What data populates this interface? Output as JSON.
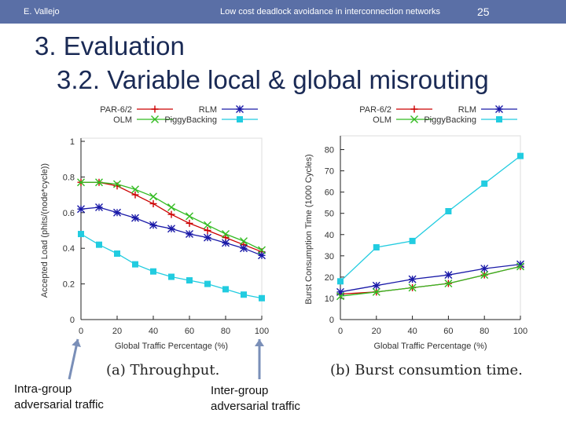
{
  "header": {
    "author": "E. Vallejo",
    "title": "Low cost deadlock avoidance in interconnection networks",
    "page": "25"
  },
  "slide": {
    "title": "3. Evaluation",
    "subtitle": "3.2. Variable local & global misrouting"
  },
  "annotations": {
    "left": [
      "Intra-group",
      "adversarial traffic"
    ],
    "right": [
      "Inter-group",
      "adversarial traffic"
    ]
  },
  "colors": {
    "par": "#cc0000",
    "rlm": "#1a1aa8",
    "olm": "#33bb22",
    "piggy": "#22cce0",
    "header": "#5a6fa6"
  },
  "chart_data": [
    {
      "type": "line",
      "title": "(a) Throughput.",
      "xlabel": "Global Traffic Percentage (%)",
      "ylabel": "Accepted Load (phits/(node*cycle))",
      "x": [
        0,
        10,
        20,
        30,
        40,
        50,
        60,
        70,
        80,
        90,
        100
      ],
      "xticks": [
        "0",
        "20",
        "40",
        "60",
        "80",
        "100"
      ],
      "yticks": [
        "0",
        "0.2",
        "0.4",
        "0.6",
        "0.8",
        "1"
      ],
      "xlim": [
        0,
        100
      ],
      "ylim": [
        0,
        1
      ],
      "legend": [
        "PAR-6/2",
        "RLM",
        "OLM",
        "PiggyBacking"
      ],
      "series": [
        {
          "name": "PAR-6/2",
          "marker": "plus",
          "values": [
            0.77,
            0.77,
            0.75,
            0.7,
            0.65,
            0.59,
            0.54,
            0.5,
            0.46,
            0.42,
            0.38
          ]
        },
        {
          "name": "RLM",
          "marker": "star",
          "values": [
            0.62,
            0.63,
            0.6,
            0.57,
            0.53,
            0.51,
            0.48,
            0.46,
            0.43,
            0.4,
            0.36
          ]
        },
        {
          "name": "OLM",
          "marker": "x",
          "values": [
            0.77,
            0.77,
            0.76,
            0.73,
            0.69,
            0.63,
            0.58,
            0.53,
            0.48,
            0.44,
            0.39
          ]
        },
        {
          "name": "PiggyBacking",
          "marker": "square",
          "values": [
            0.48,
            0.42,
            0.37,
            0.31,
            0.27,
            0.24,
            0.22,
            0.2,
            0.17,
            0.14,
            0.12
          ]
        }
      ]
    },
    {
      "type": "line",
      "title": "(b) Burst consumtion time.",
      "xlabel": "Global Traffic Percentage (%)",
      "ylabel": "Burst Consumption Time (1000 Cycles)",
      "x": [
        0,
        20,
        40,
        60,
        80,
        100
      ],
      "xticks": [
        "0",
        "20",
        "40",
        "60",
        "80",
        "100"
      ],
      "yticks": [
        "0",
        "10",
        "20",
        "30",
        "40",
        "50",
        "60",
        "70",
        "80"
      ],
      "xlim": [
        0,
        100
      ],
      "ylim": [
        0,
        85
      ],
      "legend": [
        "PAR-6/2",
        "RLM",
        "OLM",
        "PiggyBacking"
      ],
      "series": [
        {
          "name": "PAR-6/2",
          "marker": "plus",
          "values": [
            12,
            13,
            15,
            17,
            21,
            25
          ]
        },
        {
          "name": "RLM",
          "marker": "star",
          "values": [
            13,
            16,
            19,
            21,
            24,
            26
          ]
        },
        {
          "name": "OLM",
          "marker": "x",
          "values": [
            11,
            13,
            15,
            17,
            21,
            25
          ]
        },
        {
          "name": "PiggyBacking",
          "marker": "square",
          "values": [
            18,
            34,
            37,
            51,
            64,
            77
          ]
        }
      ]
    }
  ]
}
